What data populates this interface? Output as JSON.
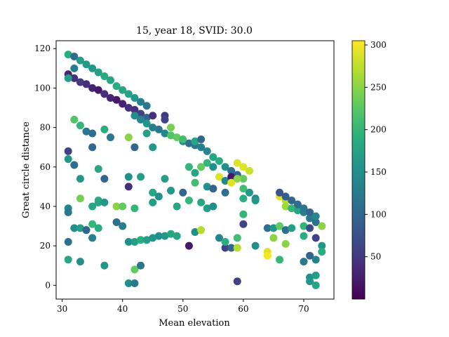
{
  "chart_data": {
    "type": "scatter",
    "title": "15, year 18, SVID: 30.0",
    "xlabel": "Mean elevation",
    "ylabel": "Great circle distance",
    "xlim": [
      29,
      75
    ],
    "ylim": [
      -7,
      124
    ],
    "xticks": [
      30,
      40,
      50,
      60,
      70
    ],
    "yticks": [
      0,
      20,
      40,
      60,
      80,
      100,
      120
    ],
    "grid": false,
    "colormap": "viridis",
    "colorbar": {
      "min": 0,
      "max": 305,
      "ticks": [
        50,
        100,
        150,
        200,
        250,
        300
      ]
    },
    "points": [
      [
        31,
        117,
        190
      ],
      [
        32,
        116,
        110
      ],
      [
        33,
        114,
        170
      ],
      [
        34,
        112,
        165
      ],
      [
        35,
        110,
        160
      ],
      [
        36,
        108,
        175
      ],
      [
        37,
        106,
        185
      ],
      [
        38,
        104,
        180
      ],
      [
        39,
        101,
        190
      ],
      [
        40,
        99,
        180
      ],
      [
        41,
        97,
        175
      ],
      [
        42,
        95,
        160
      ],
      [
        43,
        93,
        130
      ],
      [
        44,
        91,
        120
      ],
      [
        31,
        107,
        30
      ],
      [
        32,
        105,
        40
      ],
      [
        33,
        103,
        50
      ],
      [
        34,
        102,
        40
      ],
      [
        35,
        100,
        30
      ],
      [
        36,
        99,
        20
      ],
      [
        37,
        97,
        40
      ],
      [
        38,
        95,
        30
      ],
      [
        39,
        94,
        20
      ],
      [
        40,
        92,
        30
      ],
      [
        41,
        90,
        40
      ],
      [
        42,
        89,
        40
      ],
      [
        43,
        87,
        60
      ],
      [
        44,
        85,
        100
      ],
      [
        45,
        86,
        40
      ],
      [
        47,
        86,
        50
      ],
      [
        31,
        105,
        170
      ],
      [
        32,
        110,
        130
      ],
      [
        42,
        86,
        150
      ],
      [
        43,
        84,
        140
      ],
      [
        44,
        82,
        160
      ],
      [
        45,
        80,
        130
      ],
      [
        46,
        79,
        120
      ],
      [
        47,
        77,
        140
      ],
      [
        48,
        76,
        220
      ],
      [
        49,
        75,
        230
      ],
      [
        50,
        73,
        140
      ],
      [
        51,
        72,
        110
      ],
      [
        52,
        71,
        120
      ],
      [
        53,
        70,
        130
      ],
      [
        54,
        68,
        140
      ],
      [
        55,
        65,
        180
      ],
      [
        56,
        63,
        190
      ],
      [
        57,
        60,
        150
      ],
      [
        58,
        58,
        110
      ],
      [
        59,
        56,
        100
      ],
      [
        60,
        54,
        230
      ],
      [
        60,
        49,
        210
      ],
      [
        61,
        47,
        160
      ],
      [
        62,
        44,
        140
      ],
      [
        66,
        45,
        290
      ],
      [
        67,
        43,
        270
      ],
      [
        67,
        40,
        260
      ],
      [
        68,
        39,
        200
      ],
      [
        69,
        38,
        180
      ],
      [
        70,
        37,
        130
      ],
      [
        71,
        34,
        120
      ],
      [
        72,
        32,
        110
      ],
      [
        73,
        30,
        250
      ],
      [
        66,
        47,
        80
      ],
      [
        67,
        45,
        90
      ],
      [
        68,
        43,
        100
      ],
      [
        69,
        41,
        110
      ],
      [
        70,
        39,
        120
      ],
      [
        71,
        37,
        100
      ],
      [
        72,
        35,
        140
      ],
      [
        32,
        84,
        220
      ],
      [
        33,
        81,
        200
      ],
      [
        34,
        78,
        120
      ],
      [
        35,
        77,
        110
      ],
      [
        37,
        79,
        190
      ],
      [
        38,
        75,
        120
      ],
      [
        41,
        75,
        250
      ],
      [
        42,
        70,
        100
      ],
      [
        44,
        77,
        170
      ],
      [
        45,
        70,
        160
      ],
      [
        47,
        84,
        60
      ],
      [
        48,
        80,
        240
      ],
      [
        50,
        74,
        210
      ],
      [
        52,
        73,
        180
      ],
      [
        53,
        74,
        100
      ],
      [
        54,
        62,
        200
      ],
      [
        55,
        60,
        150
      ],
      [
        31,
        68,
        60
      ],
      [
        32,
        61,
        110
      ],
      [
        31,
        64,
        160
      ],
      [
        33,
        54,
        160
      ],
      [
        35,
        70,
        100
      ],
      [
        36,
        59,
        180
      ],
      [
        37,
        54,
        100
      ],
      [
        41,
        55,
        150
      ],
      [
        41,
        50,
        40
      ],
      [
        43,
        55,
        170
      ],
      [
        45,
        47,
        180
      ],
      [
        47,
        54,
        170
      ],
      [
        48,
        48,
        160
      ],
      [
        50,
        47,
        100
      ],
      [
        51,
        60,
        200
      ],
      [
        52,
        57,
        180
      ],
      [
        52,
        52,
        210
      ],
      [
        53,
        60,
        230
      ],
      [
        54,
        50,
        150
      ],
      [
        55,
        49,
        100
      ],
      [
        56,
        55,
        290
      ],
      [
        57,
        53,
        140
      ],
      [
        57,
        47,
        110
      ],
      [
        58,
        55,
        20
      ],
      [
        58,
        52,
        290
      ],
      [
        59,
        62,
        290
      ],
      [
        59,
        54,
        250
      ],
      [
        60,
        60,
        290
      ],
      [
        61,
        58,
        280
      ],
      [
        60,
        44,
        190
      ],
      [
        60,
        36,
        200
      ],
      [
        60,
        31,
        60
      ],
      [
        62,
        43,
        160
      ],
      [
        31,
        39,
        140
      ],
      [
        31,
        37,
        120
      ],
      [
        33,
        44,
        240
      ],
      [
        35,
        40,
        180
      ],
      [
        36,
        43,
        190
      ],
      [
        36,
        42,
        180
      ],
      [
        37,
        42,
        160
      ],
      [
        39,
        40,
        250
      ],
      [
        40,
        40,
        230
      ],
      [
        42,
        39,
        200
      ],
      [
        45,
        42,
        170
      ],
      [
        46,
        45,
        150
      ],
      [
        49,
        40,
        180
      ],
      [
        51,
        43,
        200
      ],
      [
        53,
        42,
        180
      ],
      [
        54,
        39,
        170
      ],
      [
        55,
        40,
        150
      ],
      [
        31,
        22,
        110
      ],
      [
        32,
        29,
        150
      ],
      [
        33,
        29,
        170
      ],
      [
        34,
        28,
        180
      ],
      [
        35,
        31,
        200
      ],
      [
        34,
        28,
        100
      ],
      [
        35,
        24,
        130
      ],
      [
        36,
        29,
        190
      ],
      [
        39,
        32,
        110
      ],
      [
        40,
        30,
        130
      ],
      [
        41,
        22,
        150
      ],
      [
        42,
        22,
        170
      ],
      [
        43,
        23,
        190
      ],
      [
        44,
        23,
        170
      ],
      [
        45,
        24,
        160
      ],
      [
        46,
        25,
        150
      ],
      [
        47,
        25,
        160
      ],
      [
        48,
        26,
        180
      ],
      [
        49,
        25,
        180
      ],
      [
        51,
        20,
        20
      ],
      [
        52,
        27,
        150
      ],
      [
        53,
        28,
        270
      ],
      [
        56,
        24,
        140
      ],
      [
        57,
        19,
        60
      ],
      [
        57,
        22,
        190
      ],
      [
        58,
        19,
        100
      ],
      [
        59,
        24,
        210
      ],
      [
        59,
        19,
        270
      ],
      [
        62,
        20,
        150
      ],
      [
        64,
        29,
        110
      ],
      [
        64,
        17,
        290
      ],
      [
        64,
        15,
        300
      ],
      [
        65,
        29,
        160
      ],
      [
        65,
        24,
        250
      ],
      [
        66,
        30,
        230
      ],
      [
        66,
        13,
        200
      ],
      [
        67,
        21,
        250
      ],
      [
        67,
        28,
        110
      ],
      [
        68,
        29,
        170
      ],
      [
        70,
        30,
        200
      ],
      [
        70,
        12,
        120
      ],
      [
        70,
        25,
        190
      ],
      [
        71,
        29,
        70
      ],
      [
        71,
        15,
        100
      ],
      [
        71,
        4,
        150
      ],
      [
        71,
        2,
        160
      ],
      [
        72,
        5,
        170
      ],
      [
        72,
        0,
        180
      ],
      [
        72,
        24,
        60
      ],
      [
        72,
        13,
        130
      ],
      [
        73,
        20,
        160
      ],
      [
        73,
        17,
        190
      ],
      [
        31,
        13,
        180
      ],
      [
        33,
        12,
        150
      ],
      [
        37,
        10,
        160
      ],
      [
        41,
        1,
        150
      ],
      [
        42,
        1,
        120
      ],
      [
        42,
        8,
        230
      ],
      [
        43,
        10,
        120
      ],
      [
        59,
        2,
        60
      ]
    ]
  }
}
